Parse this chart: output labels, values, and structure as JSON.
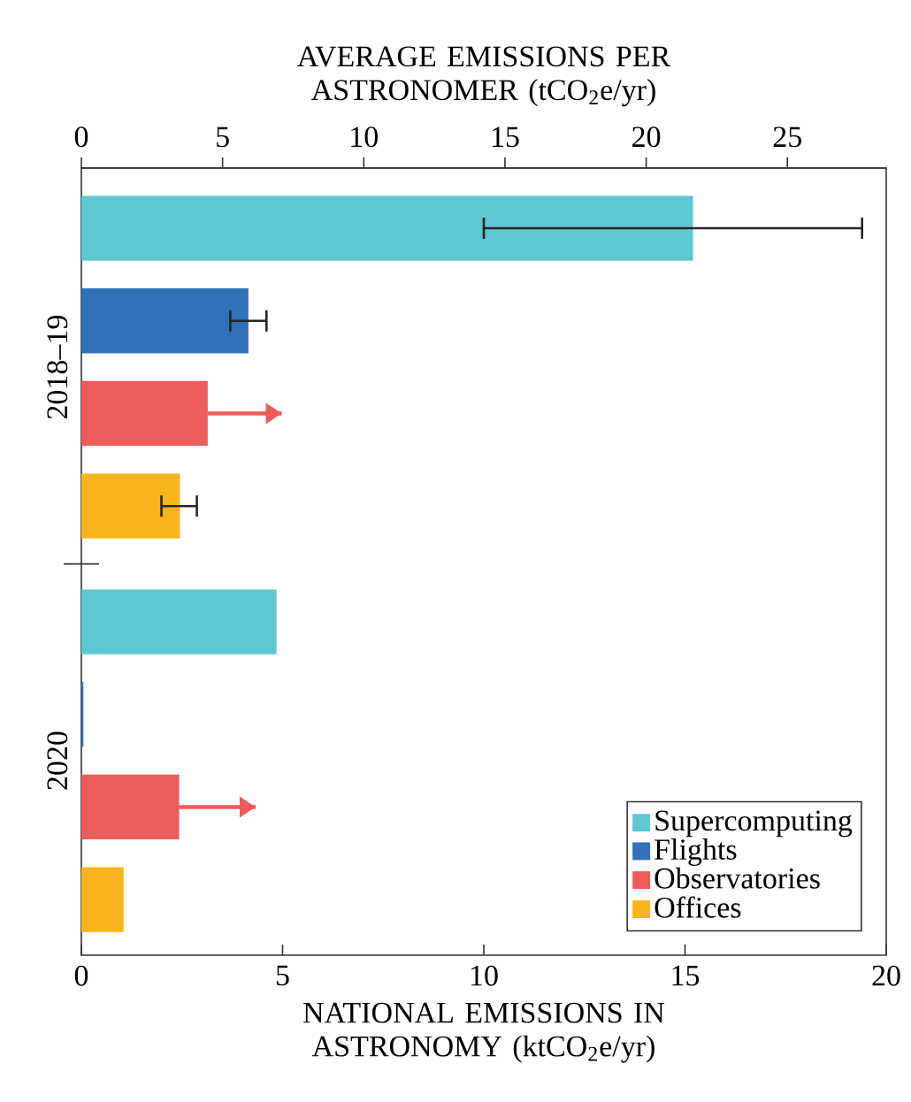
{
  "chart_data": {
    "type": "bar",
    "orientation": "horizontal",
    "categories": [
      "2018–19",
      "2020"
    ],
    "series": [
      {
        "name": "Supercomputing",
        "color": "#5fc7d2",
        "values": [
          15.2,
          4.85
        ],
        "errors": [
          [
            10.0,
            19.4
          ],
          null
        ]
      },
      {
        "name": "Flights",
        "color": "#2f72b9",
        "values": [
          4.15,
          0.05
        ],
        "errors": [
          [
            3.7,
            4.6
          ],
          null
        ]
      },
      {
        "name": "Observatories",
        "color": "#ed5b5b",
        "values": [
          3.14,
          2.43
        ],
        "errors": [
          [
            3.14,
            4.98
          ],
          [
            2.43,
            4.33
          ]
        ]
      },
      {
        "name": "Offices",
        "color": "#f7b51b",
        "values": [
          2.45,
          1.05
        ],
        "errors": [
          [
            1.99,
            2.87
          ],
          null
        ]
      }
    ],
    "xlabel": "NATIONAL EMISSIONS IN ASTRONOMY (ktCO$_{2}$e/yr)",
    "x2label": "AVERAGE EMISSIONS PER ASTRONOMER (tCO$_{2}$e/yr)",
    "xlim": [
      0,
      20
    ],
    "xticks": [
      0,
      5,
      10,
      15,
      20
    ],
    "x2lim": [
      0,
      28.5
    ],
    "x2ticks": [
      0,
      5,
      10,
      15,
      20,
      25
    ],
    "legend": "bottom right",
    "grid": false
  }
}
